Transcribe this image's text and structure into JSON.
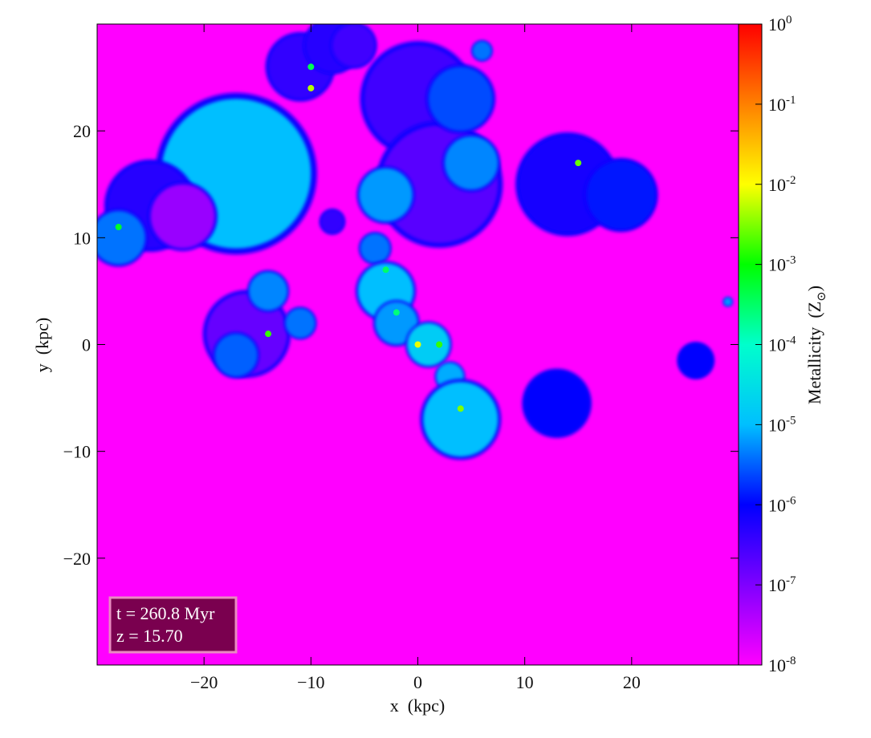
{
  "chart_data": {
    "type": "heatmap",
    "xlabel": "x  (kpc)",
    "ylabel": "y  (kpc)",
    "xlim": [
      -30,
      30
    ],
    "ylim": [
      -30,
      30
    ],
    "xticks": [
      -20,
      -10,
      0,
      10,
      20
    ],
    "yticks": [
      -20,
      -10,
      0,
      10,
      20
    ],
    "xtick_labels": [
      "−20",
      "−10",
      "0",
      "10",
      "20"
    ],
    "ytick_labels": [
      "−20",
      "−10",
      "0",
      "10",
      "20"
    ],
    "background_value": 1e-08,
    "colorbar": {
      "label": "Metallicity  (Z",
      "label_sub": "⊙",
      "label_close": ")",
      "scale": "log",
      "range": [
        1e-08,
        1
      ],
      "ticks": [
        {
          "base": "10",
          "exp": "0",
          "value": 1
        },
        {
          "base": "10",
          "exp": "-1",
          "value": 0.1
        },
        {
          "base": "10",
          "exp": "-2",
          "value": 0.01
        },
        {
          "base": "10",
          "exp": "-3",
          "value": 0.001
        },
        {
          "base": "10",
          "exp": "-4",
          "value": 0.0001
        },
        {
          "base": "10",
          "exp": "-5",
          "value": 1e-05
        },
        {
          "base": "10",
          "exp": "-6",
          "value": 1e-06
        },
        {
          "base": "10",
          "exp": "-7",
          "value": 1e-07
        },
        {
          "base": "10",
          "exp": "-8",
          "value": 1e-08
        }
      ],
      "colormap": [
        "#ff00ff",
        "#7f00ff",
        "#0000ff",
        "#00bfff",
        "#00ffcc",
        "#00ff00",
        "#ffff00",
        "#ff8000",
        "#ff0000"
      ]
    },
    "annotation": {
      "line1": "t = 260.8 Myr",
      "line2": "z = 15.70",
      "box_fill": "#7a004f",
      "box_edge": "#e88ac0"
    },
    "blobs": [
      {
        "x": -17,
        "y": 16,
        "r": 7,
        "log_z": -5.0
      },
      {
        "x": -25,
        "y": 13,
        "r": 4,
        "log_z": -6.3
      },
      {
        "x": -28,
        "y": 10,
        "r": 2.5,
        "log_z": -5.4
      },
      {
        "x": -22,
        "y": 12,
        "r": 3,
        "log_z": -7.2
      },
      {
        "x": -11,
        "y": 26,
        "r": 3,
        "log_z": -6.4
      },
      {
        "x": -8,
        "y": 28,
        "r": 2.5,
        "log_z": -6.3
      },
      {
        "x": -6,
        "y": 28,
        "r": 2,
        "log_z": -6.5
      },
      {
        "x": 0,
        "y": 23,
        "r": 5,
        "log_z": -6.5
      },
      {
        "x": 2,
        "y": 15,
        "r": 5.5,
        "log_z": -6.7
      },
      {
        "x": -3,
        "y": 14,
        "r": 2.5,
        "log_z": -5.2
      },
      {
        "x": 4,
        "y": 23,
        "r": 3,
        "log_z": -5.6
      },
      {
        "x": 5,
        "y": 17,
        "r": 2.5,
        "log_z": -5.3
      },
      {
        "x": 14,
        "y": 15,
        "r": 4.5,
        "log_z": -6.2
      },
      {
        "x": 19,
        "y": 14,
        "r": 3.2,
        "log_z": -5.9
      },
      {
        "x": -8,
        "y": 11.5,
        "r": 1.1,
        "log_z": -6.4
      },
      {
        "x": -4,
        "y": 9,
        "r": 1.4,
        "log_z": -5.4
      },
      {
        "x": -3,
        "y": 5,
        "r": 2.6,
        "log_z": -5.0
      },
      {
        "x": -2,
        "y": 2,
        "r": 2,
        "log_z": -5.2
      },
      {
        "x": 1,
        "y": 0,
        "r": 2,
        "log_z": -4.8
      },
      {
        "x": 3,
        "y": -3,
        "r": 1.3,
        "log_z": -5.1
      },
      {
        "x": 4,
        "y": -7,
        "r": 3.5,
        "log_z": -5.0
      },
      {
        "x": -16,
        "y": 1,
        "r": 3.8,
        "log_z": -6.8
      },
      {
        "x": -14,
        "y": 5,
        "r": 1.8,
        "log_z": -5.3
      },
      {
        "x": -17,
        "y": -1,
        "r": 2,
        "log_z": -5.5
      },
      {
        "x": -11,
        "y": 2,
        "r": 1.4,
        "log_z": -5.4
      },
      {
        "x": 13,
        "y": -5.5,
        "r": 3,
        "log_z": -6.0
      },
      {
        "x": 26,
        "y": -1.5,
        "r": 1.6,
        "log_z": -6.0
      },
      {
        "x": 29,
        "y": 4,
        "r": 0.4,
        "log_z": -5.2
      },
      {
        "x": 6,
        "y": 27.5,
        "r": 0.9,
        "log_z": -5.4
      }
    ],
    "hotspots": [
      {
        "x": -10,
        "y": 24,
        "log_z": -2.3
      },
      {
        "x": -3,
        "y": 7,
        "log_z": -3.5
      },
      {
        "x": 0,
        "y": 0,
        "log_z": -2.1
      },
      {
        "x": 2,
        "y": 0,
        "log_z": -2.8
      },
      {
        "x": 4,
        "y": -6,
        "log_z": -2.5
      },
      {
        "x": 15,
        "y": 17,
        "log_z": -2.6
      },
      {
        "x": -14,
        "y": 1,
        "log_z": -2.8
      },
      {
        "x": -28,
        "y": 11,
        "log_z": -3.2
      },
      {
        "x": -10,
        "y": 26,
        "log_z": -3.4
      },
      {
        "x": -2,
        "y": 3,
        "log_z": -3.6
      }
    ]
  }
}
